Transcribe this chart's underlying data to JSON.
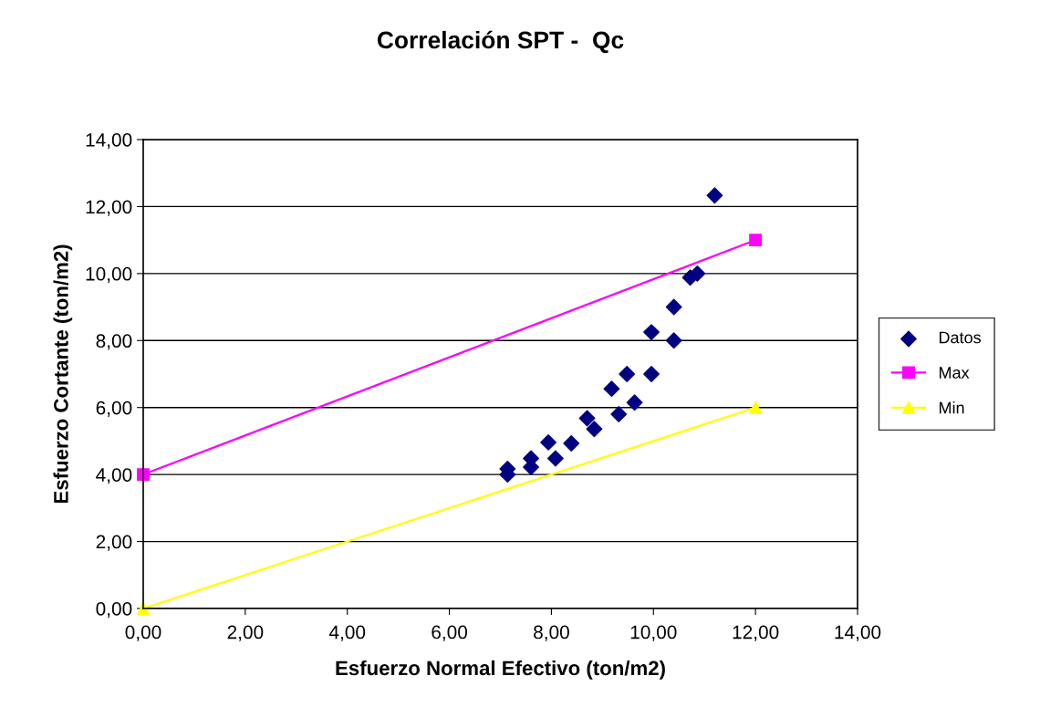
{
  "chart_data": {
    "type": "scatter",
    "title": "Correlación SPT -  Qc",
    "xlabel": "Esfuerzo Normal Efectivo (ton/m2)",
    "ylabel": "Esfuerzo Cortante (ton/m2)",
    "xlim": [
      0,
      14
    ],
    "ylim": [
      0,
      14
    ],
    "xticks": [
      {
        "value": 0,
        "label": "0,00"
      },
      {
        "value": 2,
        "label": "2,00"
      },
      {
        "value": 4,
        "label": "4,00"
      },
      {
        "value": 6,
        "label": "6,00"
      },
      {
        "value": 8,
        "label": "8,00"
      },
      {
        "value": 10,
        "label": "10,00"
      },
      {
        "value": 12,
        "label": "12,00"
      },
      {
        "value": 14,
        "label": "14,00"
      }
    ],
    "yticks": [
      {
        "value": 0,
        "label": "0,00"
      },
      {
        "value": 2,
        "label": "2,00"
      },
      {
        "value": 4,
        "label": "4,00"
      },
      {
        "value": 6,
        "label": "6,00"
      },
      {
        "value": 8,
        "label": "8,00"
      },
      {
        "value": 10,
        "label": "10,00"
      },
      {
        "value": 12,
        "label": "12,00"
      },
      {
        "value": 14,
        "label": "14,00"
      }
    ],
    "grid": "y",
    "legend": "right",
    "series": [
      {
        "name": "Datos",
        "marker": "diamond",
        "color": "#000080",
        "x": [
          7.14,
          7.14,
          7.6,
          7.6,
          7.94,
          8.08,
          8.39,
          8.7,
          8.84,
          9.18,
          9.32,
          9.48,
          9.63,
          9.96,
          9.96,
          10.4,
          10.4,
          10.72,
          10.86,
          11.2
        ],
        "values": [
          4.17,
          4.0,
          4.48,
          4.22,
          4.96,
          4.48,
          4.93,
          5.68,
          5.36,
          6.56,
          5.8,
          7.0,
          6.15,
          8.25,
          7.0,
          9.0,
          8.0,
          9.88,
          10.0,
          12.33
        ]
      },
      {
        "name": "Max",
        "type": "line",
        "marker": "square",
        "color": "#ff00ff",
        "x": [
          0,
          12
        ],
        "values": [
          4,
          11
        ]
      },
      {
        "name": "Min",
        "type": "line",
        "marker": "triangle",
        "color": "#ffff00",
        "x": [
          0,
          12
        ],
        "values": [
          0,
          6
        ]
      }
    ]
  }
}
